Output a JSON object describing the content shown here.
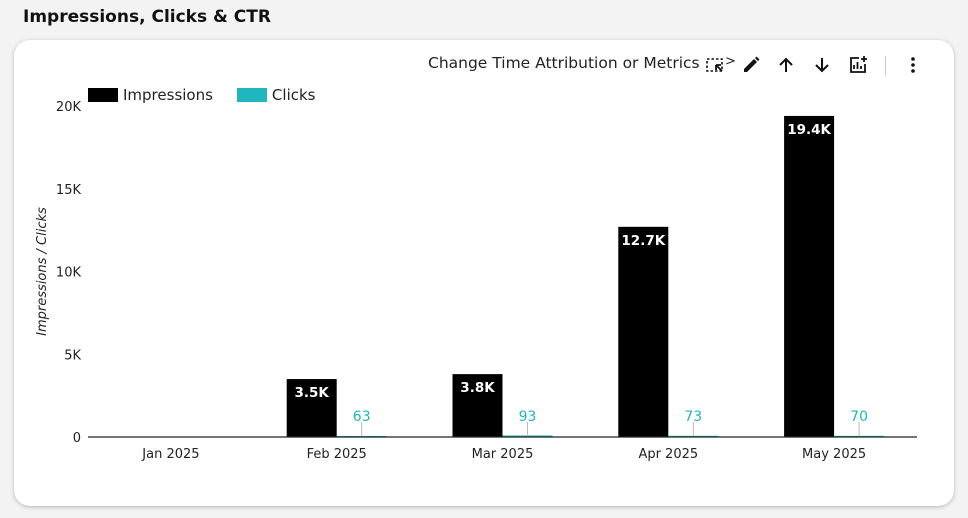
{
  "page": {
    "title": "Impressions, Clicks & CTR"
  },
  "toolbar": {
    "change_attribution_label": "Change Time Attribution or Metrics",
    "chevron": ">",
    "icons": [
      "selection-icon",
      "pencil-icon",
      "arrow-up-icon",
      "arrow-down-icon",
      "add-chart-icon",
      "more-vert-icon"
    ]
  },
  "colors": {
    "impressions": "#000000",
    "clicks": "#1fb6bd",
    "axis": "#222222",
    "background": "#f3f3f3",
    "card": "#ffffff"
  },
  "chart_data": {
    "type": "bar",
    "title": "",
    "ylabel": "Impressions / Clicks",
    "xlabel": "",
    "ylim": [
      0,
      20000
    ],
    "yticks": [
      0,
      5000,
      10000,
      15000,
      20000
    ],
    "ytick_labels": [
      "0",
      "5K",
      "10K",
      "15K",
      "20K"
    ],
    "categories": [
      "Jan 2025",
      "Feb 2025",
      "Mar 2025",
      "Apr 2025",
      "May 2025"
    ],
    "legend_position": "top-left",
    "grid": false,
    "series": [
      {
        "name": "Impressions",
        "values": [
          0,
          3500,
          3800,
          12700,
          19400
        ],
        "labels": [
          "",
          "3.5K",
          "3.8K",
          "12.7K",
          "19.4K"
        ]
      },
      {
        "name": "Clicks",
        "values": [
          0,
          63,
          93,
          73,
          70
        ],
        "labels": [
          "",
          "63",
          "93",
          "73",
          "70"
        ]
      }
    ]
  }
}
